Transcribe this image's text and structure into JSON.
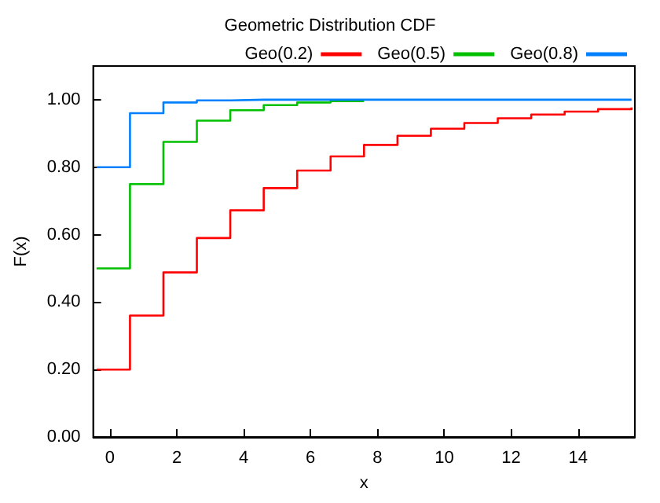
{
  "chart_data": {
    "type": "step",
    "title": "Geometric Distribution CDF",
    "xlabel": "x",
    "ylabel": "F(x)",
    "xlim": [
      -0.5,
      15.7
    ],
    "xticks": [
      0,
      2,
      4,
      6,
      8,
      10,
      12,
      14
    ],
    "ylim": [
      0,
      1.1
    ],
    "yticks": [
      {
        "value": 0,
        "label": "0.00"
      },
      {
        "value": 0.2,
        "label": "0.20"
      },
      {
        "value": 0.4,
        "label": "0.40"
      },
      {
        "value": 0.6,
        "label": "0.60"
      },
      {
        "value": 0.8,
        "label": "0.80"
      },
      {
        "value": 1,
        "label": "1.00"
      }
    ],
    "grid": false,
    "legend": "top right",
    "marker": "none",
    "line_style": "solid",
    "series": [
      {
        "name": "Geo(0.2)",
        "color": "#ff0000",
        "x": [
          -0.4,
          0.6,
          1.6,
          2.6,
          3.6,
          4.6,
          5.6,
          6.6,
          7.6,
          8.6,
          9.6,
          10.6,
          11.6,
          12.6,
          13.6,
          14.6,
          15.6
        ],
        "values": [
          0.2,
          0.36,
          0.488,
          0.59,
          0.672,
          0.738,
          0.79,
          0.832,
          0.866,
          0.893,
          0.914,
          0.931,
          0.945,
          0.956,
          0.965,
          0.972,
          0.977
        ]
      },
      {
        "name": "Geo(0.5)",
        "color": "#00c000",
        "x": [
          -0.4,
          0.6,
          1.6,
          2.6,
          3.6,
          4.6,
          5.6,
          6.6,
          7.6
        ],
        "values": [
          0.5,
          0.75,
          0.875,
          0.938,
          0.969,
          0.984,
          0.992,
          0.996,
          0.998
        ]
      },
      {
        "name": "Geo(0.8)",
        "color": "#0080ff",
        "x": [
          -0.4,
          0.6,
          1.6,
          2.6,
          3.6,
          4.6,
          5.6,
          6.6,
          7.6,
          8.6,
          9.6,
          10.6,
          11.6,
          12.6,
          13.6,
          14.6,
          15.6
        ],
        "values": [
          0.8,
          0.96,
          0.992,
          0.998,
          1,
          1,
          1,
          1,
          1,
          1,
          1,
          1,
          1,
          1,
          1,
          1,
          1
        ]
      }
    ]
  }
}
